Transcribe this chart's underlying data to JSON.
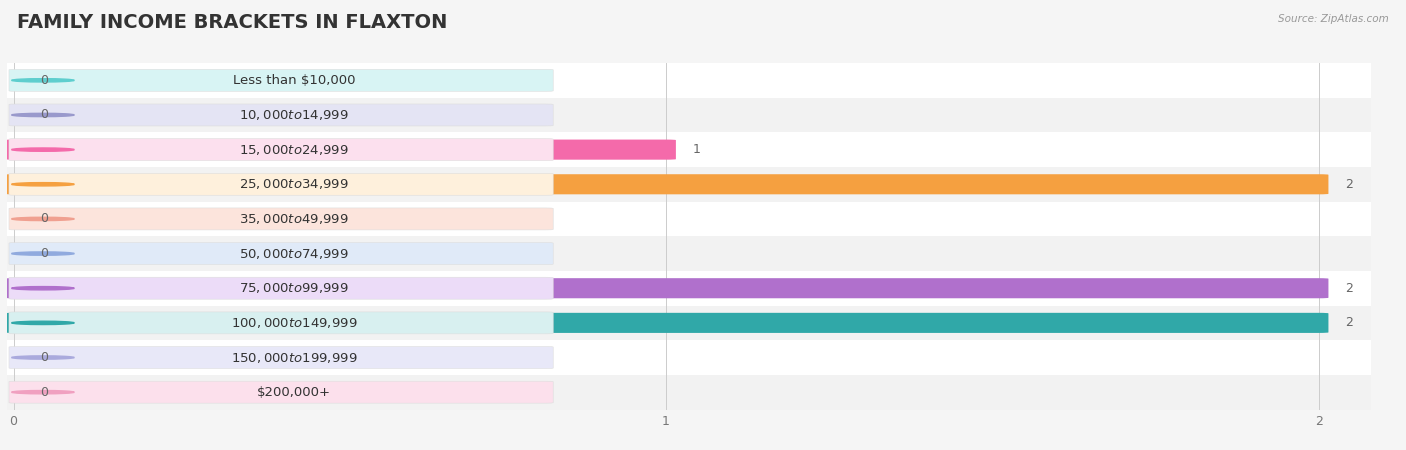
{
  "title": "FAMILY INCOME BRACKETS IN FLAXTON",
  "source": "Source: ZipAtlas.com",
  "categories": [
    "Less than $10,000",
    "$10,000 to $14,999",
    "$15,000 to $24,999",
    "$25,000 to $34,999",
    "$35,000 to $49,999",
    "$50,000 to $74,999",
    "$75,000 to $99,999",
    "$100,000 to $149,999",
    "$150,000 to $199,999",
    "$200,000+"
  ],
  "values": [
    0,
    0,
    1,
    2,
    0,
    0,
    2,
    2,
    0,
    0
  ],
  "bar_colors": [
    "#5ecece",
    "#9999cc",
    "#f46aaa",
    "#f5a040",
    "#f0a090",
    "#90aade",
    "#b070cc",
    "#30a8a8",
    "#aaaadd",
    "#f0a0c0"
  ],
  "pill_colors": [
    "#d8f4f4",
    "#e4e4f4",
    "#fce0ee",
    "#fef0dc",
    "#fce4dc",
    "#e0eaf8",
    "#ecdcf8",
    "#d8f0f0",
    "#e8e8f8",
    "#fce0ec"
  ],
  "row_colors": [
    "#ffffff",
    "#f2f2f2"
  ],
  "xlim": [
    0,
    2
  ],
  "xticks": [
    0,
    1,
    2
  ],
  "bg_color": "#f5f5f5",
  "title_fontsize": 14,
  "label_fontsize": 9.5,
  "value_fontsize": 9
}
